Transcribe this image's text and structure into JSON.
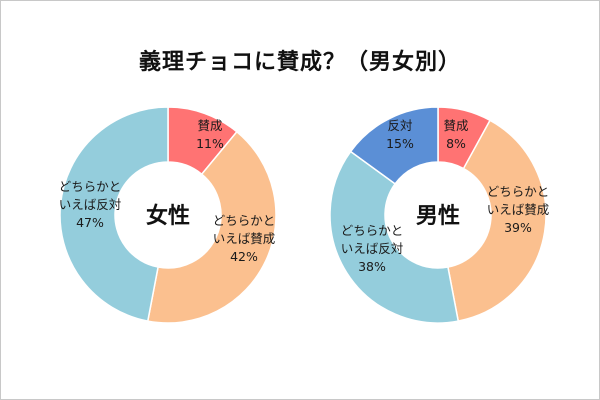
{
  "title": "義理チョコに賛成？（男女別）",
  "chart_data": [
    {
      "type": "pie",
      "center_label": "女性",
      "slices": [
        {
          "label": [
            "賛成"
          ],
          "value": 11,
          "value_label": "11%",
          "color": "#ff7373"
        },
        {
          "label": [
            "どちらかと",
            "いえば賛成"
          ],
          "value": 42,
          "value_label": "42%",
          "color": "#fbc08f"
        },
        {
          "label": [
            "どちらかと",
            "いえば反対"
          ],
          "value": 47,
          "value_label": "47%",
          "color": "#94cddc"
        }
      ]
    },
    {
      "type": "pie",
      "center_label": "男性",
      "slices": [
        {
          "label": [
            "賛成"
          ],
          "value": 8,
          "value_label": "8%",
          "color": "#ff7373"
        },
        {
          "label": [
            "どちらかと",
            "いえば賛成"
          ],
          "value": 39,
          "value_label": "39%",
          "color": "#fbc08f"
        },
        {
          "label": [
            "どちらかと",
            "いえば反対"
          ],
          "value": 38,
          "value_label": "38%",
          "color": "#94cddc"
        },
        {
          "label": [
            "反対"
          ],
          "value": 15,
          "value_label": "15%",
          "color": "#5b8fd6"
        }
      ]
    }
  ]
}
